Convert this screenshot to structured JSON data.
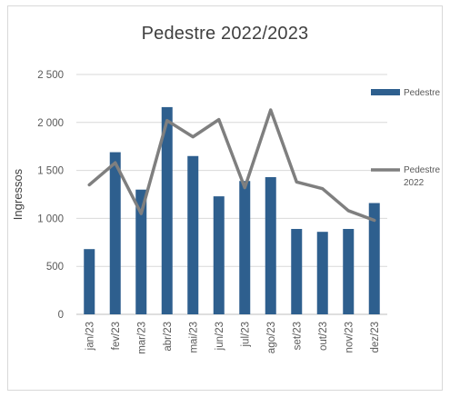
{
  "chart_data": {
    "type": "bar",
    "title": "Pedestre 2022/2023",
    "ylabel": "Ingressos",
    "xlabel": "",
    "categories": [
      "jan/23",
      "fev/23",
      "mar/23",
      "abr/23",
      "mai/23",
      "jun/23",
      "jul/23",
      "ago/23",
      "set/23",
      "out/23",
      "nov/23",
      "dez/23"
    ],
    "ylim": [
      0,
      2500
    ],
    "yticks": [
      0,
      500,
      1000,
      1500,
      2000,
      2500
    ],
    "ytick_labels": [
      "0",
      "500",
      "1 000",
      "1 500",
      "2 000",
      "2 500"
    ],
    "grid": true,
    "legend_position": "right",
    "series": [
      {
        "name": "Pedestre",
        "type": "bar",
        "color": "#2e5f8e",
        "values": [
          680,
          1690,
          1300,
          2160,
          1650,
          1230,
          1390,
          1430,
          890,
          860,
          890,
          1160
        ]
      },
      {
        "name": "Pedestre 2022",
        "legend_lines": [
          "Pedestre",
          "2022"
        ],
        "type": "line",
        "color": "#7f7f7f",
        "values": [
          1350,
          1580,
          1050,
          2020,
          1850,
          2030,
          1320,
          2130,
          1380,
          1310,
          1080,
          980
        ]
      }
    ]
  }
}
